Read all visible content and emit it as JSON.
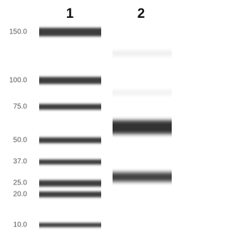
{
  "lanes": [
    "1",
    "2"
  ],
  "ladder": [
    "150.0",
    "100.0",
    "75.0",
    "50.0",
    "37.0",
    "25.0",
    "20.0",
    "10.0"
  ]
}
